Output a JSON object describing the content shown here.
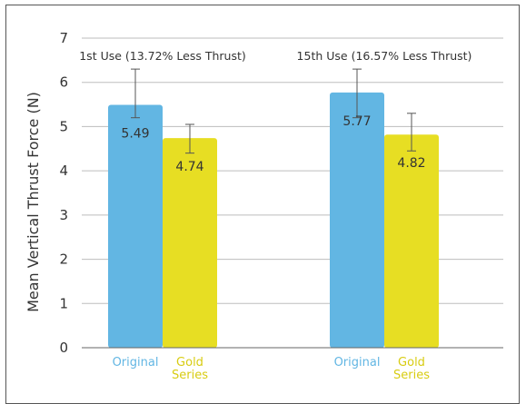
{
  "chart_data": {
    "type": "bar",
    "ylabel": "Mean Vertical Thrust Force (N)",
    "ylim": [
      0,
      7
    ],
    "yticks": [
      0,
      1,
      2,
      3,
      4,
      5,
      6,
      7
    ],
    "grid": true,
    "groups": [
      {
        "annotation": "1st Use (13.72% Less Thrust)",
        "bars": [
          {
            "label": "Original",
            "value": 5.49,
            "value_label": "5.49",
            "error": [
              5.2,
              6.3
            ],
            "color": "#62b6e3",
            "label_color": "#62b6e3"
          },
          {
            "label": "Gold Series",
            "value": 4.74,
            "value_label": "4.74",
            "error": [
              4.4,
              5.05
            ],
            "color": "#e7de23",
            "label_color": "#d8cc12"
          }
        ]
      },
      {
        "annotation": "15th Use (16.57% Less Thrust)",
        "bars": [
          {
            "label": "Original",
            "value": 5.77,
            "value_label": "5.77",
            "error": [
              5.2,
              6.3
            ],
            "color": "#62b6e3",
            "label_color": "#62b6e3"
          },
          {
            "label": "Gold Series",
            "value": 4.82,
            "value_label": "4.82",
            "error": [
              4.45,
              5.3
            ],
            "color": "#e7de23",
            "label_color": "#d8cc12"
          }
        ]
      }
    ]
  }
}
